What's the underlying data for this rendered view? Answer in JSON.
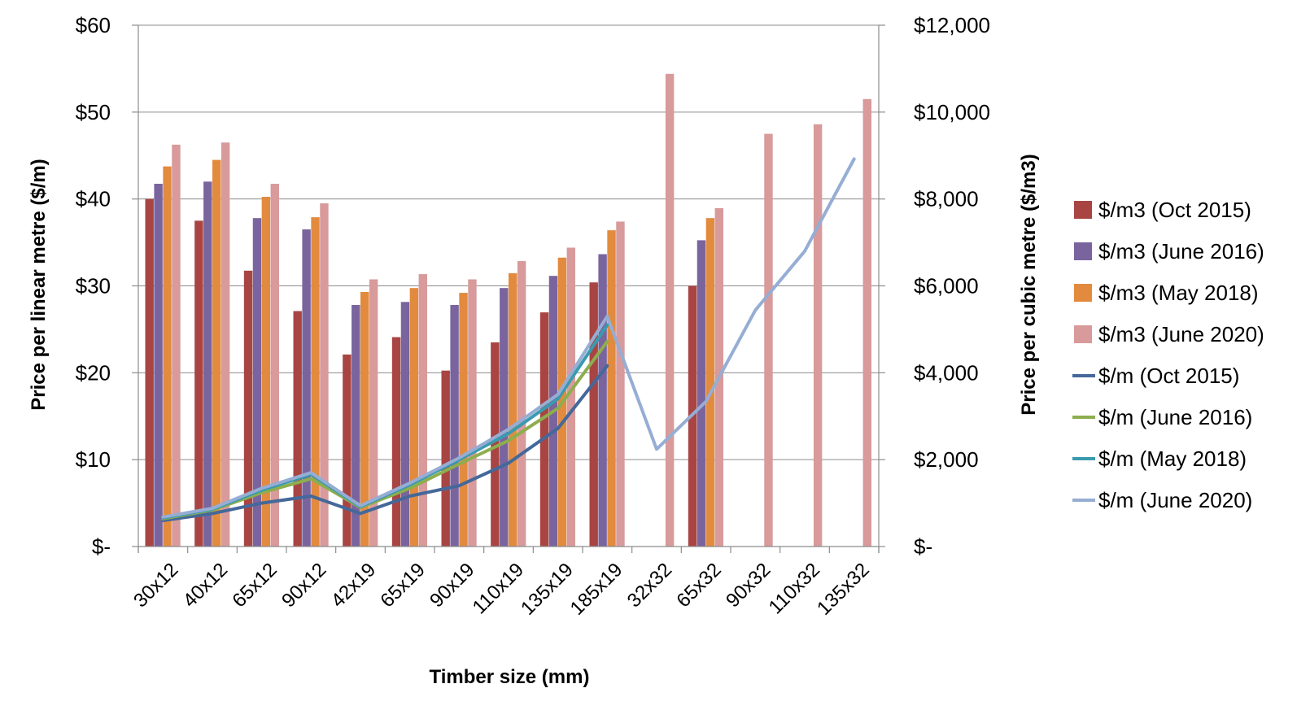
{
  "chart_data": {
    "type": "bar",
    "title": "",
    "xlabel": "Timber size (mm)",
    "ylabel": "Price per linear metre ($/m)",
    "y2label": "Price per cubic metre ($/m3)",
    "ylim": [
      0,
      60
    ],
    "y2lim": [
      0,
      12000
    ],
    "grid": true,
    "legend_position": "right",
    "categories": [
      "30x12",
      "40x12",
      "65x12",
      "90x12",
      "42x19",
      "65x19",
      "90x19",
      "110x19",
      "135x19",
      "185x19",
      "32x32",
      "65x32",
      "90x32",
      "110x32",
      "135x32"
    ],
    "y_ticks": [
      "$-",
      "$10",
      "$20",
      "$30",
      "$40",
      "$50",
      "$60"
    ],
    "y2_ticks": [
      "$-",
      "$2,000",
      "$4,000",
      "$6,000",
      "$8,000",
      "$10,000",
      "$12,000"
    ],
    "bar_series": [
      {
        "name": "$/m3 (Oct 2015)",
        "color": "#A84543",
        "axis": "right",
        "values": [
          8000,
          7500,
          6350,
          5420,
          4420,
          4820,
          4050,
          4700,
          5390,
          6080,
          null,
          6000,
          null,
          null,
          null
        ]
      },
      {
        "name": "$/m3 (June 2016)",
        "color": "#7A649E",
        "axis": "right",
        "values": [
          8350,
          8400,
          7560,
          7300,
          5560,
          5630,
          5560,
          5950,
          6230,
          6730,
          null,
          7050,
          null,
          null,
          null
        ]
      },
      {
        "name": "$/m3 (May 2018)",
        "color": "#E28B3E",
        "axis": "right",
        "values": [
          8750,
          8900,
          8050,
          7580,
          5860,
          5950,
          5840,
          6290,
          6650,
          7280,
          null,
          7560,
          null,
          null,
          null
        ]
      },
      {
        "name": "$/m3 (June 2020)",
        "color": "#D89A9A",
        "axis": "right",
        "values": [
          9250,
          9300,
          8350,
          7900,
          6150,
          6270,
          6150,
          6570,
          6880,
          7480,
          10880,
          7790,
          9500,
          9720,
          10300
        ]
      }
    ],
    "line_series": [
      {
        "name": "$/m (Oct 2015)",
        "color": "#44689A",
        "axis": "left",
        "values": [
          3.0,
          3.8,
          5.0,
          5.8,
          3.8,
          5.8,
          7.0,
          9.6,
          13.6,
          20.8,
          null,
          null,
          null,
          null,
          null
        ]
      },
      {
        "name": "$/m (June 2016)",
        "color": "#8DAE4E",
        "axis": "left",
        "values": [
          3.2,
          4.2,
          6.2,
          7.8,
          4.5,
          6.7,
          9.5,
          12.2,
          15.9,
          23.6,
          null,
          null,
          null,
          null,
          null
        ]
      },
      {
        "name": "$/m (May 2018)",
        "color": "#3A9AAE",
        "axis": "left",
        "values": [
          3.3,
          4.3,
          6.5,
          8.3,
          4.6,
          7.1,
          10.0,
          13.0,
          17.0,
          25.5,
          null,
          null,
          null,
          null,
          null
        ]
      },
      {
        "name": "$/m (June 2020)",
        "color": "#96ADD4",
        "axis": "left",
        "values": [
          3.4,
          4.4,
          6.7,
          8.5,
          4.7,
          7.3,
          10.2,
          13.5,
          17.5,
          26.5,
          11.2,
          16.7,
          27.2,
          34.0,
          44.6
        ]
      }
    ]
  }
}
